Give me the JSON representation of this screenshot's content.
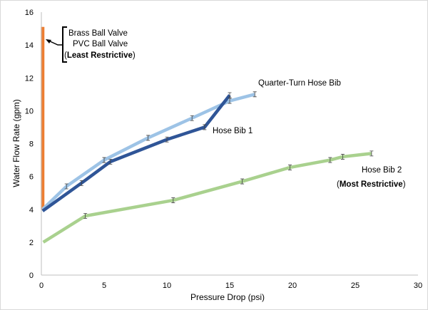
{
  "chart_data": {
    "type": "line",
    "title": "",
    "xlabel": "Pressure Drop (psi)",
    "ylabel": "Water Flow Rate (gpm)",
    "xlim": [
      0,
      30
    ],
    "ylim": [
      0,
      16
    ],
    "x_ticks": [
      0,
      5,
      10,
      15,
      20,
      25,
      30
    ],
    "y_ticks": [
      0,
      2,
      4,
      6,
      8,
      10,
      12,
      14,
      16
    ],
    "grid": false,
    "series": [
      {
        "name": "Brass Ball Valve / PVC Ball Valve",
        "color": "#ED7D31",
        "x": [
          0.1,
          0.1,
          0.1,
          0.1,
          0.1
        ],
        "y": [
          4.0,
          6.0,
          8.0,
          12.0,
          15.1
        ]
      },
      {
        "name": "Hose Bib 1",
        "color": "#2F5597",
        "x": [
          0.1,
          3.2,
          5.5,
          10.0,
          13.0,
          15.0
        ],
        "y": [
          3.9,
          5.6,
          6.9,
          8.25,
          9.0,
          10.95
        ]
      },
      {
        "name": "Quarter-Turn Hose Bib",
        "color": "#9DC3E6",
        "x": [
          0.1,
          2.0,
          5.0,
          8.5,
          12.0,
          15.0,
          17.0
        ],
        "y": [
          4.0,
          5.4,
          7.0,
          8.35,
          9.55,
          10.6,
          11.0
        ]
      },
      {
        "name": "Hose Bib 2",
        "color": "#A9D18E",
        "x": [
          0.15,
          3.5,
          10.5,
          16.0,
          19.8,
          23.0,
          24.0,
          26.3
        ],
        "y": [
          2.0,
          3.6,
          4.55,
          5.7,
          6.55,
          7.0,
          7.2,
          7.4
        ]
      }
    ],
    "annotations": {
      "ball_valves_line1": "Brass Ball Valve",
      "ball_valves_line2": "PVC Ball Valve",
      "least_open": "(",
      "least_bold": "Least Restrictive",
      "least_close": ")",
      "quarter_turn": "Quarter-Turn Hose Bib",
      "hose_bib_1": "Hose Bib 1",
      "hose_bib_2": "Hose Bib 2",
      "most_open": "(",
      "most_bold": "Most Restrictive",
      "most_close": ")"
    }
  }
}
